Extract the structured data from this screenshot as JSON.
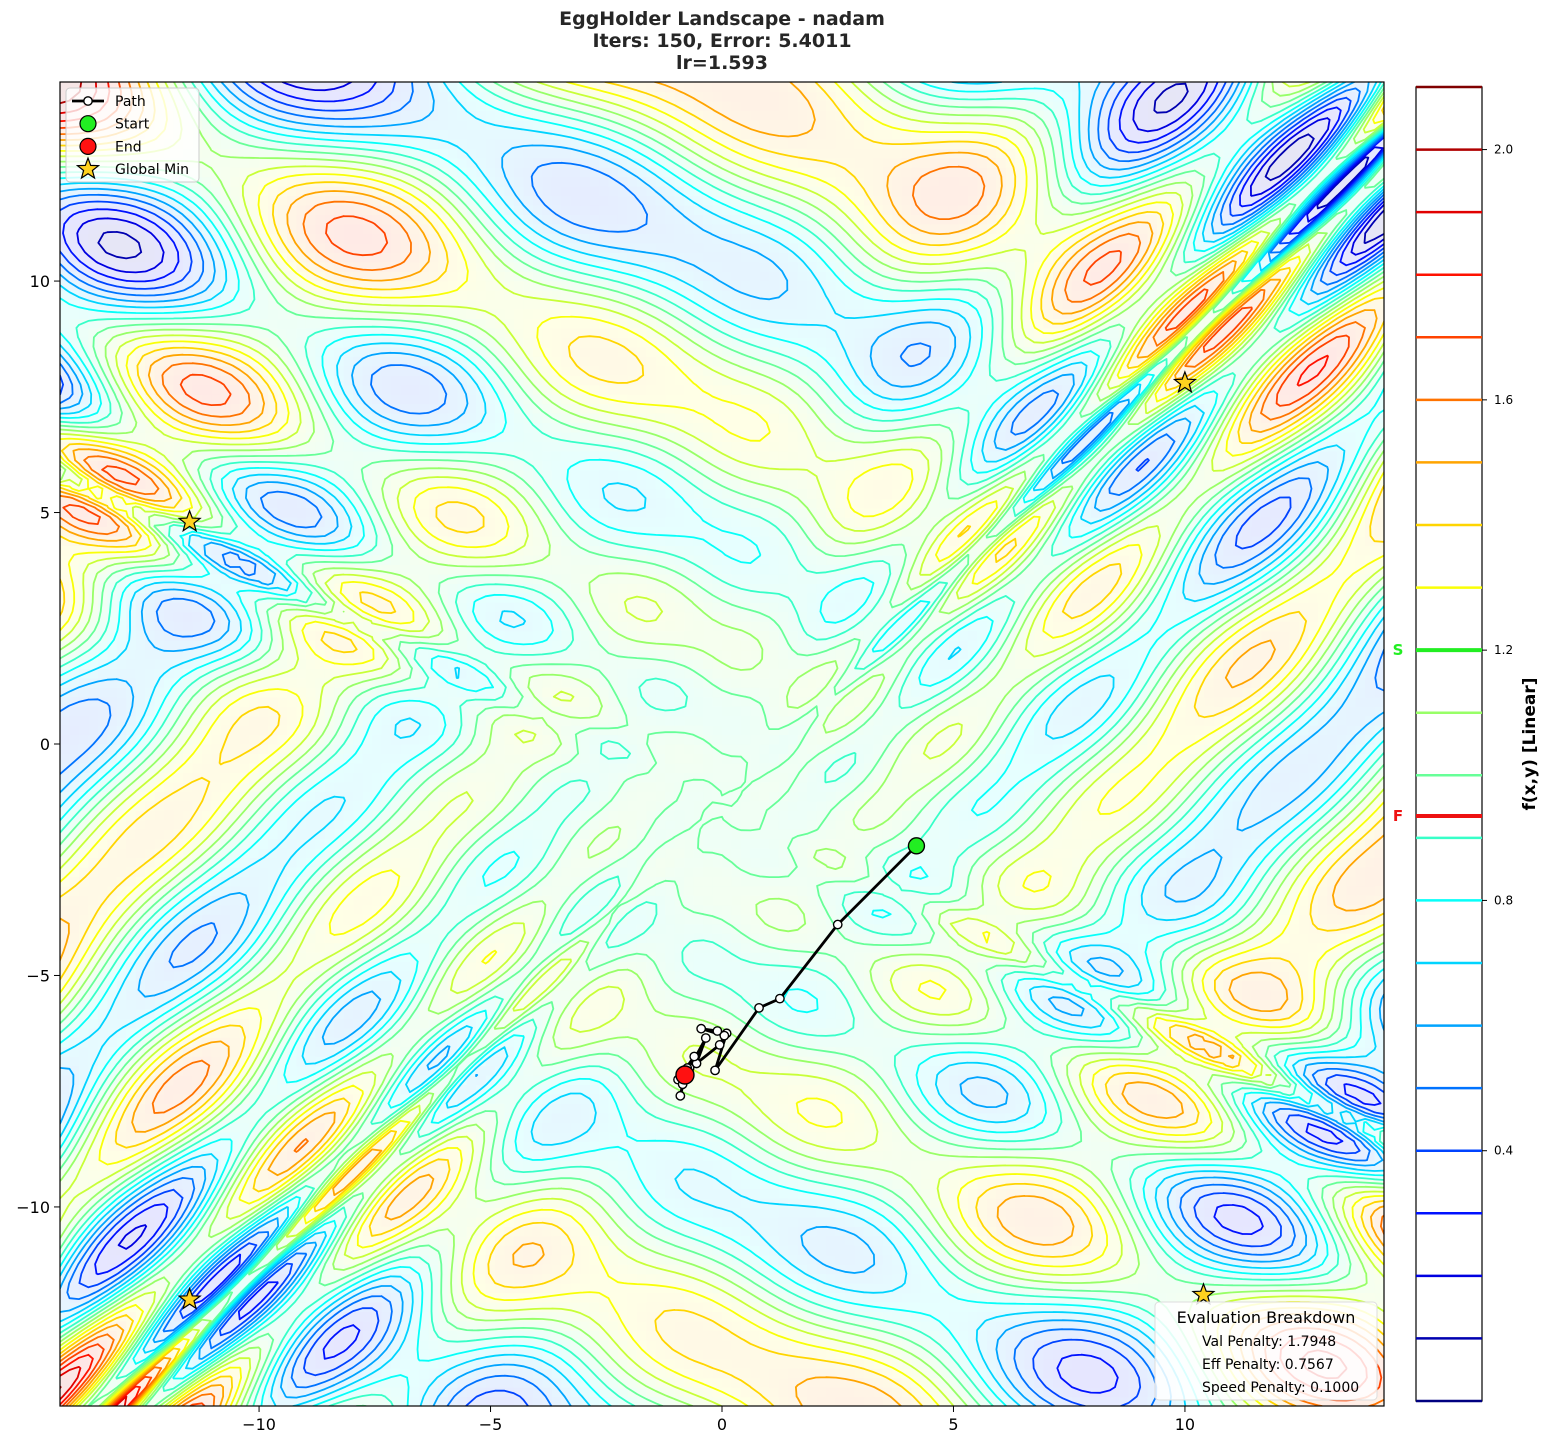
{
  "chart_data": {
    "type": "contour",
    "title": "EggHolder Landscape - nadam",
    "subtitle_lines": [
      "Iters: 150, Error: 5.4011",
      "lr=1.593"
    ],
    "xlim": [
      -14.3,
      14.3
    ],
    "ylim": [
      -14.3,
      14.3
    ],
    "x_ticks": [
      -10,
      -5,
      0,
      5,
      10
    ],
    "y_ticks": [
      10,
      5,
      0,
      -5,
      -10
    ],
    "x_tick_labels": [
      "−10",
      "−5",
      "0",
      "5",
      "10"
    ],
    "y_tick_labels": [
      "10",
      "5",
      "0",
      "−5",
      "−10"
    ],
    "grid": false,
    "legend": {
      "placement": "top-left",
      "entries": [
        {
          "label": "Path",
          "marker": "line-circle",
          "color": "#000000"
        },
        {
          "label": "Start",
          "marker": "circle",
          "color": "#22ee22"
        },
        {
          "label": "End",
          "marker": "circle",
          "color": "#ff1111"
        },
        {
          "label": "Global Min",
          "marker": "star",
          "color": "#ffd21f"
        }
      ]
    },
    "path": [
      [
        4.2,
        -2.2
      ],
      [
        2.5,
        -3.9
      ],
      [
        1.25,
        -5.5
      ],
      [
        0.8,
        -5.7
      ],
      [
        -0.15,
        -7.05
      ],
      [
        0.1,
        -6.25
      ],
      [
        -0.1,
        -6.2
      ],
      [
        -0.45,
        -6.15
      ],
      [
        0.05,
        -6.3
      ],
      [
        -0.05,
        -6.5
      ],
      [
        -0.55,
        -6.9
      ],
      [
        -0.35,
        -6.35
      ],
      [
        -0.7,
        -7.0
      ],
      [
        -0.6,
        -6.75
      ],
      [
        -0.95,
        -7.25
      ],
      [
        -0.75,
        -7.0
      ],
      [
        -0.85,
        -7.35
      ],
      [
        -0.9,
        -7.6
      ],
      [
        -0.8,
        -7.2
      ]
    ],
    "start": [
      4.2,
      -2.2
    ],
    "end": [
      -0.8,
      -7.15
    ],
    "global_minima": [
      [
        10.0,
        7.8
      ],
      [
        -11.5,
        4.8
      ],
      [
        -11.5,
        -12.0
      ],
      [
        10.4,
        -11.9
      ]
    ],
    "colorbar": {
      "label": "f(x,y) [Linear]",
      "range": [
        0.0,
        2.1
      ],
      "ticks": [
        0.4,
        0.8,
        1.2,
        1.6,
        2.0
      ],
      "tick_labels": [
        "0.4",
        "0.8",
        "1.2",
        "1.6",
        "2.0"
      ],
      "levels": [
        0.1,
        0.2,
        0.3,
        0.4,
        0.5,
        0.6,
        0.7,
        0.8,
        0.9,
        1.0,
        1.1,
        1.2,
        1.3,
        1.4,
        1.5,
        1.6,
        1.7,
        1.8,
        1.9,
        2.0,
        2.1
      ],
      "markers": [
        {
          "label": "S",
          "value": 1.2,
          "color": "#22ee22"
        },
        {
          "label": "F",
          "value": 0.935,
          "color": "#ee1111"
        }
      ]
    },
    "evaluation": {
      "title": "Evaluation Breakdown",
      "placement": "bottom-right",
      "lines": [
        "Val Penalty: 1.7948",
        "Eff Penalty: 0.7567",
        "Speed Penalty: 0.1000"
      ]
    }
  }
}
